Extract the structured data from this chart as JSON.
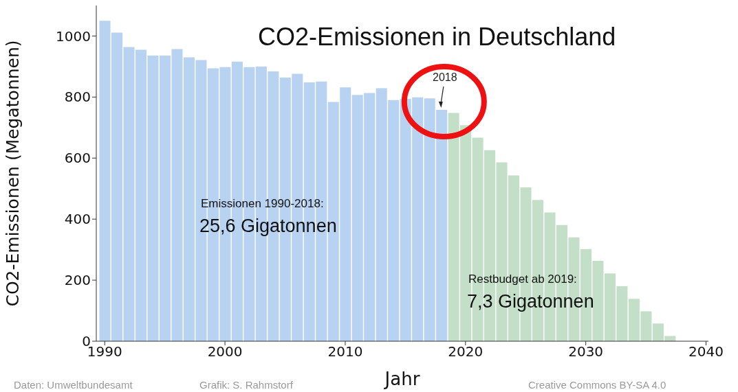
{
  "chart_data": {
    "type": "bar",
    "title": "CO2-Emissionen in Deutschland",
    "xlabel": "Jahr",
    "ylabel": "CO2-Emissionen (Megatonnen)",
    "x": [
      1990,
      1991,
      1992,
      1993,
      1994,
      1995,
      1996,
      1997,
      1998,
      1999,
      2000,
      2001,
      2002,
      2003,
      2004,
      2005,
      2006,
      2007,
      2008,
      2009,
      2010,
      2011,
      2012,
      2013,
      2014,
      2015,
      2016,
      2017,
      2018,
      2019,
      2020,
      2021,
      2022,
      2023,
      2024,
      2025,
      2026,
      2027,
      2028,
      2029,
      2030,
      2031,
      2032,
      2033,
      2034,
      2035,
      2036,
      2037
    ],
    "series": [
      {
        "color": "#b8d2f2",
        "values": [
          1050,
          1011,
          964,
          955,
          936,
          936,
          957,
          930,
          921,
          894,
          898,
          916,
          898,
          900,
          884,
          864,
          876,
          848,
          851,
          784,
          832,
          807,
          813,
          829,
          790,
          794,
          799,
          796,
          758,
          null,
          null,
          null,
          null,
          null,
          null,
          null,
          null,
          null,
          null,
          null,
          null,
          null,
          null,
          null,
          null,
          null,
          null,
          null
        ]
      },
      {
        "color": "#c3dfc8",
        "values": [
          null,
          null,
          null,
          null,
          null,
          null,
          null,
          null,
          null,
          null,
          null,
          null,
          null,
          null,
          null,
          null,
          null,
          null,
          null,
          null,
          null,
          null,
          null,
          null,
          null,
          null,
          null,
          null,
          null,
          748,
          708,
          667,
          626,
          586,
          543,
          504,
          463,
          422,
          381,
          340,
          302,
          263,
          222,
          180,
          139,
          98,
          58,
          17
        ]
      }
    ],
    "xlim": [
      1989.3,
      2040.2
    ],
    "xticks": [
      1990,
      2000,
      2010,
      2020,
      2030,
      2040
    ],
    "ylim": [
      0,
      1100
    ],
    "yticks": [
      0,
      200,
      400,
      600,
      800,
      1000
    ],
    "annotations": [
      {
        "text": "2018",
        "x": 2018,
        "y": 758
      },
      "Emissionen 1990-2018:",
      "25,6 Gigatonnen",
      "Restbudget ab 2019:",
      "7,3 Gigatonnen",
      "Daten: Umweltbundesamt",
      "Grafik: S. Rahmstorf",
      "Creative Commons BY-SA 4.0"
    ]
  }
}
